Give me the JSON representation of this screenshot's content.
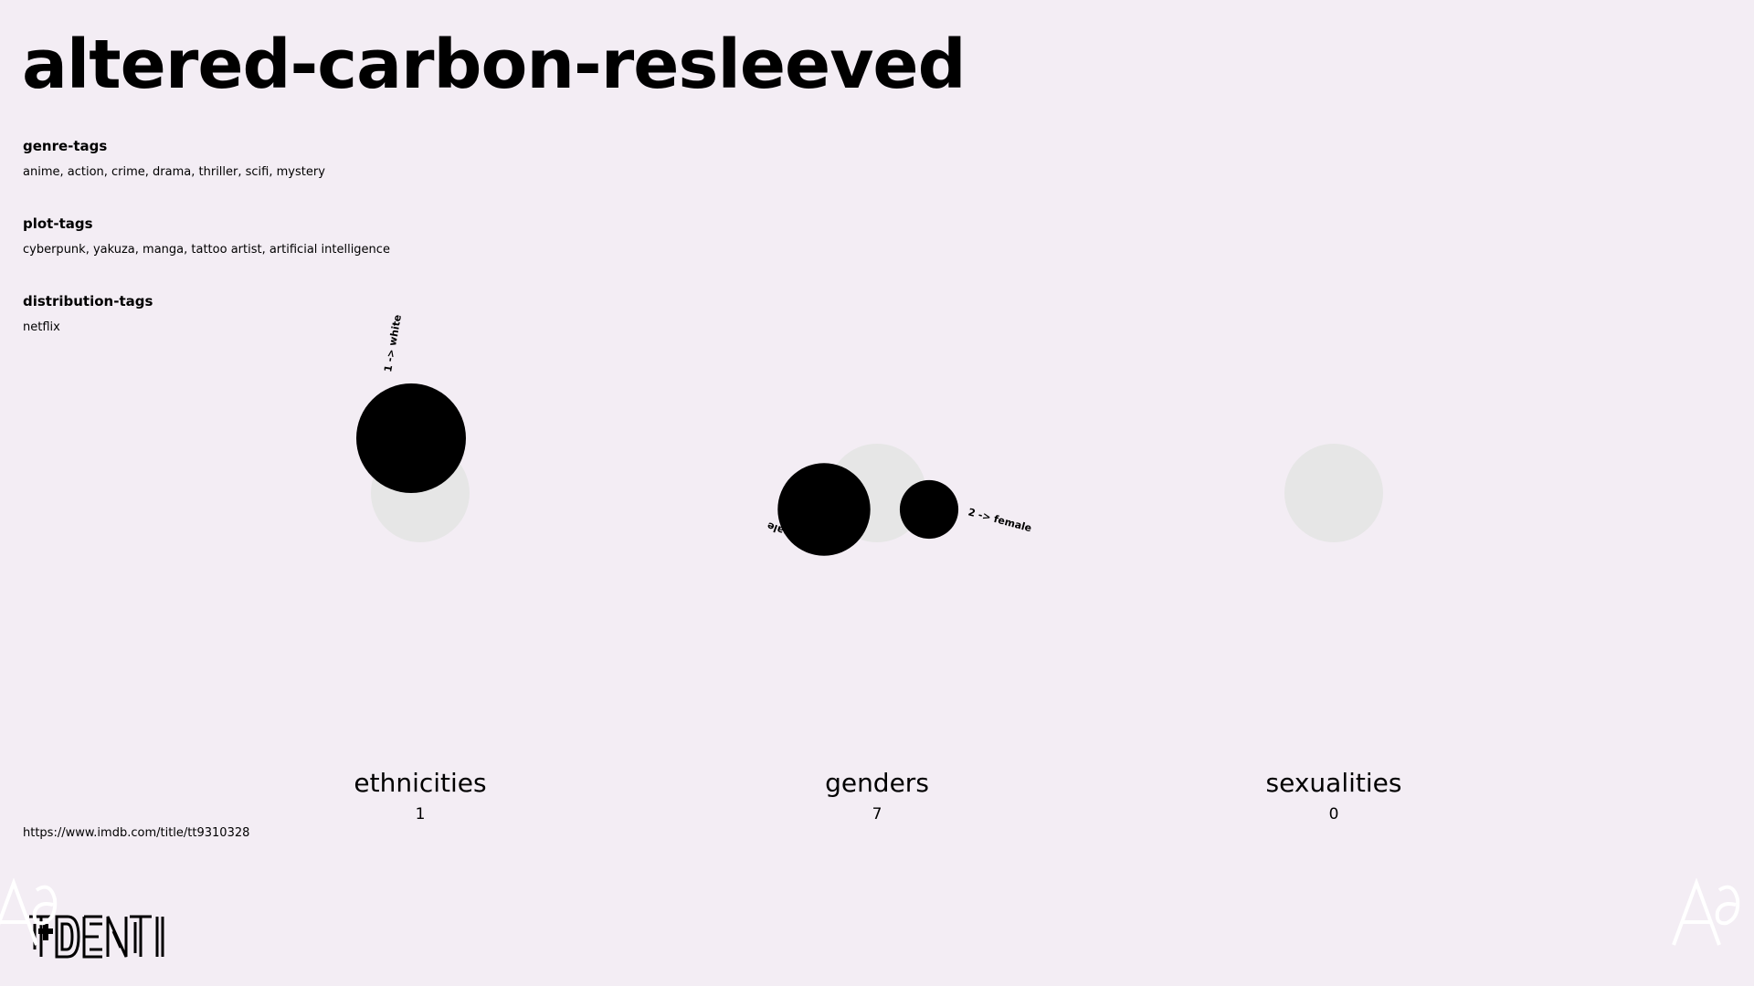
{
  "page": {
    "title": "altered-carbon-resleeved",
    "url": "https://www.imdb.com/title/tt9310328"
  },
  "tags": {
    "genre": {
      "label": "genre-tags",
      "value": "anime, action, crime, drama, thriller, scifi, mystery"
    },
    "plot": {
      "label": "plot-tags",
      "value": "cyberpunk, yakuza, manga, tattoo artist, artificial intelligence"
    },
    "distribution": {
      "label": "distribution-tags",
      "value": "netflix"
    }
  },
  "colors": {
    "background": "#f3edf4",
    "bubble": "#000000",
    "base_circle": "#e6e6e6"
  },
  "logo": {
    "name": "ident-logo"
  },
  "chart_data": [
    {
      "type": "bubble",
      "title": "ethnicities",
      "total": 1,
      "series": [
        {
          "name": "white",
          "value": 1,
          "label": "1 -> white"
        }
      ]
    },
    {
      "type": "bubble",
      "title": "genders",
      "total": 7,
      "series": [
        {
          "name": "male",
          "value": 5,
          "label": "5 -> male"
        },
        {
          "name": "female",
          "value": 2,
          "label": "2 -> female"
        }
      ]
    },
    {
      "type": "bubble",
      "title": "sexualities",
      "total": 0,
      "series": []
    }
  ]
}
